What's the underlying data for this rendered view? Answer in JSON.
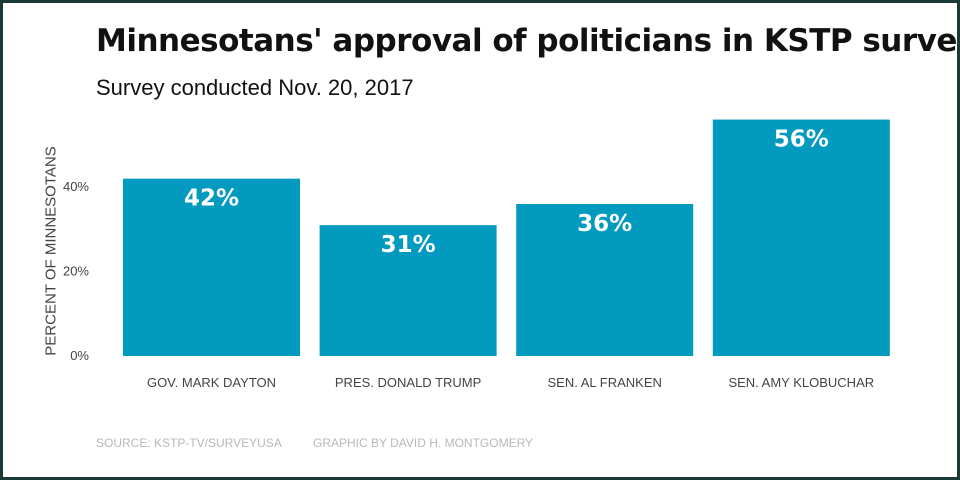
{
  "title": "Minnesotans' approval of politicians in KSTP survey",
  "subtitle": "Survey conducted Nov. 20, 2017",
  "footer": {
    "source": "SOURCE: KSTP-TV/SURVEYUSA",
    "credit": "GRAPHIC BY DAVID H. MONTGOMERY"
  },
  "colors": {
    "bar": "#039abf",
    "bar_label": "#ffffff",
    "tick": "#444444"
  },
  "chart_data": {
    "type": "bar",
    "title": "Minnesotans' approval of politicians in KSTP survey",
    "subtitle": "Survey conducted Nov. 20, 2017",
    "xlabel": "",
    "ylabel": "PERCENT OF MINNESOTANS",
    "categories": [
      "GOV. MARK DAYTON",
      "PRES. DONALD TRUMP",
      "SEN. AL FRANKEN",
      "SEN. AMY KLOBUCHAR"
    ],
    "values": [
      42,
      31,
      36,
      56
    ],
    "data_labels": [
      "42%",
      "31%",
      "36%",
      "56%"
    ],
    "yticks": [
      0,
      20,
      40
    ],
    "ytick_labels": [
      "0%",
      "20%",
      "40%"
    ],
    "ylim": [
      0,
      56
    ],
    "grid": false,
    "legend": "none"
  }
}
